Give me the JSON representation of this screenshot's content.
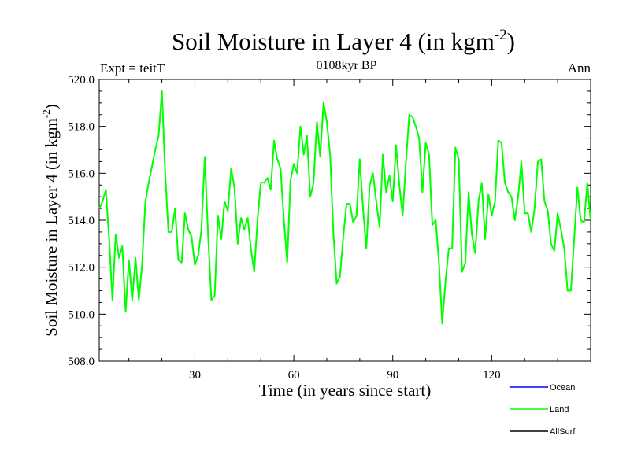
{
  "chart_data": {
    "type": "line",
    "title": "Soil Moisture in Layer 4 (in kgm",
    "title_sup": "-2",
    "title_end": ")",
    "subtitle": "0108kyr BP",
    "left_label": "Expt = teitT",
    "right_label": "Ann",
    "xlabel": "Time (in years since start)",
    "ylabel": "Soil Moisture in Layer 4 (in kgm",
    "ylabel_sup": "-2",
    "ylabel_end": ")",
    "xlim": [
      1,
      150
    ],
    "ylim": [
      508.0,
      520.0
    ],
    "xticks": [
      30,
      60,
      90,
      120
    ],
    "xtick_labels": [
      "30",
      "60",
      "90",
      "120"
    ],
    "yticks": [
      508,
      510,
      512,
      514,
      516,
      518,
      520
    ],
    "ytick_labels": [
      "508.0",
      "510.0",
      "512.0",
      "514.0",
      "516.0",
      "518.0",
      "520.0"
    ],
    "legend_position": "bottom-right",
    "series": [
      {
        "name": "Ocean",
        "color": "#0000ff",
        "values": []
      },
      {
        "name": "Land",
        "color": "#00ff00",
        "x": [
          1,
          2,
          3,
          4,
          5,
          6,
          7,
          8,
          9,
          10,
          11,
          12,
          13,
          14,
          15,
          16,
          17,
          18,
          19,
          20,
          21,
          22,
          23,
          24,
          25,
          26,
          27,
          28,
          29,
          30,
          31,
          32,
          33,
          34,
          35,
          36,
          37,
          38,
          39,
          40,
          41,
          42,
          43,
          44,
          45,
          46,
          47,
          48,
          49,
          50,
          51,
          52,
          53,
          54,
          55,
          56,
          57,
          58,
          59,
          60,
          61,
          62,
          63,
          64,
          65,
          66,
          67,
          68,
          69,
          70,
          71,
          72,
          73,
          74,
          75,
          76,
          77,
          78,
          79,
          80,
          81,
          82,
          83,
          84,
          85,
          86,
          87,
          88,
          89,
          90,
          91,
          92,
          93,
          94,
          95,
          96,
          97,
          98,
          99,
          100,
          101,
          102,
          103,
          104,
          105,
          106,
          107,
          108,
          109,
          110,
          111,
          112,
          113,
          114,
          115,
          116,
          117,
          118,
          119,
          120,
          121,
          122,
          123,
          124,
          125,
          126,
          127,
          128,
          129,
          130,
          131,
          132,
          133,
          134,
          135,
          136,
          137,
          138,
          139,
          140,
          141,
          142,
          143,
          144,
          145,
          146,
          147,
          148,
          149,
          150
        ],
        "values": [
          514.5,
          514.8,
          515.3,
          513.2,
          510.6,
          513.4,
          512.4,
          512.9,
          510.1,
          512.3,
          510.6,
          512.4,
          510.6,
          512.1,
          514.8,
          515.6,
          516.3,
          517.0,
          517.6,
          519.5,
          516.0,
          513.5,
          513.5,
          514.5,
          512.3,
          512.2,
          514.3,
          513.6,
          513.3,
          512.1,
          512.5,
          513.6,
          516.7,
          513.4,
          510.6,
          510.8,
          514.2,
          513.2,
          514.8,
          514.4,
          516.2,
          515.4,
          513.0,
          514.1,
          513.6,
          514.1,
          512.8,
          511.8,
          514.0,
          515.6,
          515.6,
          515.8,
          515.3,
          517.4,
          516.6,
          516.2,
          514.0,
          512.2,
          515.7,
          516.4,
          516.0,
          518.0,
          516.8,
          517.6,
          515.0,
          515.6,
          518.2,
          516.7,
          519.0,
          518.2,
          516.8,
          513.5,
          511.3,
          511.6,
          513.3,
          514.7,
          514.7,
          513.9,
          514.2,
          516.6,
          514.5,
          512.8,
          515.5,
          516.0,
          514.8,
          513.7,
          516.8,
          515.2,
          515.9,
          514.8,
          517.2,
          515.5,
          514.2,
          516.5,
          518.5,
          518.4,
          518.0,
          517.5,
          515.2,
          517.3,
          516.8,
          513.8,
          514.0,
          512.2,
          509.6,
          511.4,
          512.8,
          512.8,
          517.1,
          516.6,
          511.8,
          512.2,
          515.2,
          513.4,
          512.6,
          514.8,
          515.6,
          513.2,
          515.1,
          514.2,
          514.8,
          517.4,
          517.3,
          515.6,
          515.2,
          515.0,
          514.0,
          515.0,
          516.5,
          514.3,
          514.3,
          513.5,
          514.5,
          516.5,
          516.6,
          514.8,
          514.4,
          513.0,
          512.7,
          514.3,
          513.6,
          512.8,
          511.0,
          511.0,
          513.2,
          515.4,
          514.0,
          513.9,
          515.6,
          514.0
        ]
      },
      {
        "name": "AllSurf",
        "color": "#000000",
        "values": []
      }
    ]
  }
}
